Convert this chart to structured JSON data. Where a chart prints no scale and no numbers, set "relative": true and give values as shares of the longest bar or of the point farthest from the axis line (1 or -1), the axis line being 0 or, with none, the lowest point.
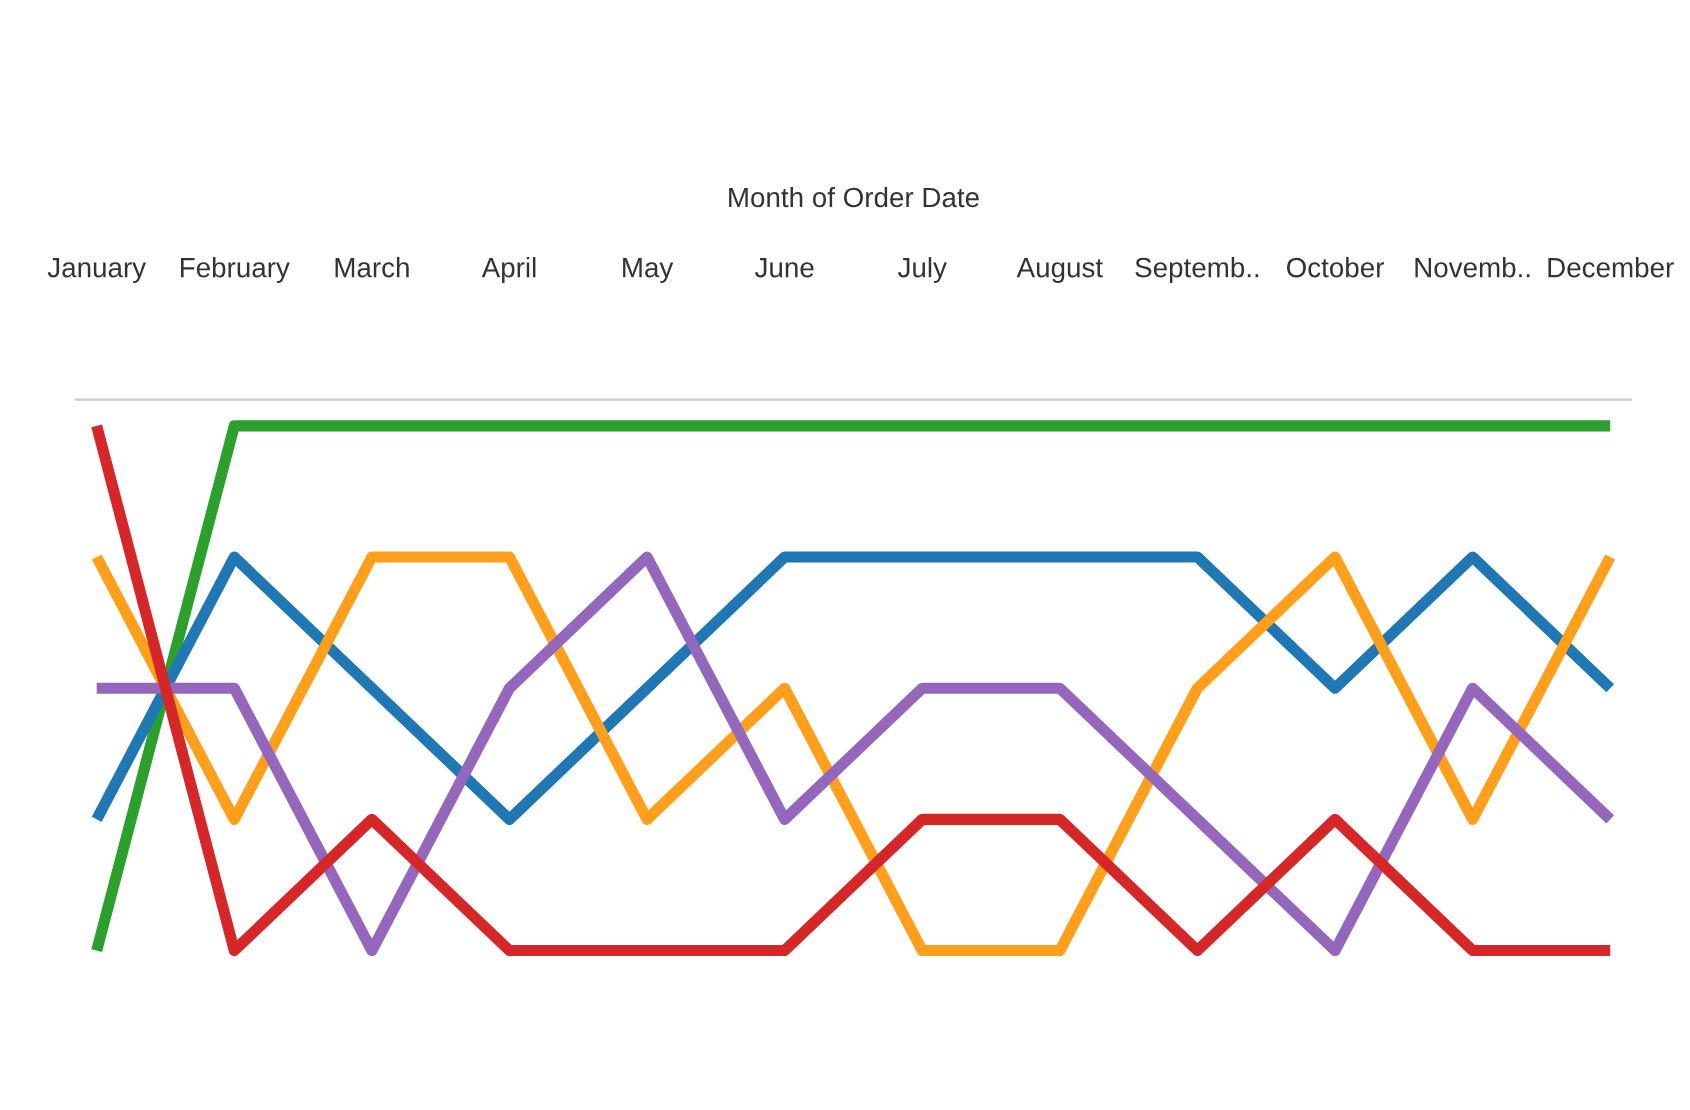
{
  "chart_data": {
    "type": "line",
    "xlabel": "Month of Order Date",
    "relative": true,
    "grid": false,
    "legend": false,
    "categories": [
      "January",
      "February",
      "March",
      "April",
      "May",
      "June",
      "July",
      "August",
      "Septemb..",
      "October",
      "Novemb..",
      "December"
    ],
    "series": [
      {
        "color": "#2ca02c",
        "values": [
          0,
          1,
          1,
          1,
          1,
          1,
          1,
          1,
          1,
          1,
          1,
          1
        ]
      },
      {
        "color": "#1f77b4",
        "values": [
          0.25,
          0.75,
          0.5,
          0.25,
          0.5,
          0.75,
          0.75,
          0.75,
          0.75,
          0.5,
          0.75,
          0.5
        ]
      },
      {
        "color": "#ff9f1c",
        "values": [
          0.75,
          0.25,
          0.75,
          0.75,
          0.25,
          0.5,
          0,
          0,
          0.5,
          0.75,
          0.25,
          0.75
        ]
      },
      {
        "color": "#9467bd",
        "values": [
          0.5,
          0.5,
          0,
          0.5,
          0.75,
          0.25,
          0.5,
          0.5,
          0.25,
          0,
          0.5,
          0.25
        ]
      },
      {
        "color": "#d62728",
        "values": [
          1,
          0,
          0.25,
          0,
          0,
          0,
          0.25,
          0.25,
          0,
          0.25,
          0,
          0
        ]
      }
    ]
  }
}
